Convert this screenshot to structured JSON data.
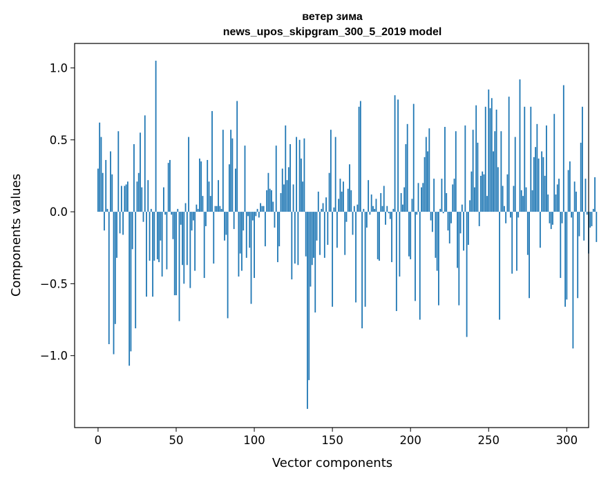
{
  "chart_data": {
    "type": "bar",
    "title_line1": "ветер зима",
    "title_line2": "news_upos_skipgram_300_5_2019 model",
    "xlabel": "Vector components",
    "ylabel": "Components values",
    "xlim": [
      -15,
      314
    ],
    "ylim": [
      -1.5,
      1.17
    ],
    "xticks": [
      0,
      50,
      100,
      150,
      200,
      250,
      300
    ],
    "yticks": [
      1.0,
      0.5,
      0.0,
      -0.5,
      -1.0
    ],
    "ytick_labels": [
      "1.0",
      "0.5",
      "0.0",
      "−0.5",
      "−1.0"
    ],
    "bar_color": "#1f77b4",
    "values": [
      0.3,
      0.62,
      0.52,
      0.27,
      -0.13,
      0.36,
      0.02,
      -0.92,
      0.42,
      0.26,
      -0.99,
      -0.78,
      -0.32,
      0.56,
      -0.15,
      0.18,
      -0.16,
      0.18,
      0.19,
      0.21,
      -1.07,
      -0.97,
      -0.26,
      0.47,
      -0.81,
      0.21,
      0.27,
      0.55,
      0.17,
      -0.07,
      0.67,
      -0.59,
      0.22,
      -0.34,
      0.02,
      -0.59,
      -0.34,
      1.05,
      -0.33,
      -0.35,
      -0.2,
      -0.45,
      0.17,
      -0.02,
      -0.4,
      0.34,
      0.36,
      -0.02,
      -0.19,
      -0.58,
      -0.58,
      0.02,
      -0.76,
      -0.09,
      -0.37,
      -0.5,
      0.06,
      -0.37,
      0.52,
      -0.53,
      -0.13,
      -0.06,
      -0.41,
      0.05,
      0.02,
      0.37,
      0.35,
      0.11,
      -0.46,
      -0.1,
      0.36,
      0.21,
      0.11,
      0.7,
      -0.36,
      0.04,
      0.04,
      0.22,
      0.04,
      0.02,
      0.57,
      -0.2,
      -0.16,
      -0.74,
      0.33,
      0.57,
      0.51,
      -0.12,
      0.3,
      0.77,
      -0.45,
      -0.29,
      -0.41,
      -0.13,
      0.46,
      -0.32,
      -0.03,
      -0.25,
      -0.64,
      -0.06,
      -0.46,
      -0.03,
      0.02,
      -0.04,
      0.06,
      0.04,
      0.04,
      -0.24,
      0.15,
      0.27,
      0.16,
      0.15,
      0.07,
      -0.11,
      0.46,
      -0.35,
      -0.24,
      0.13,
      0.3,
      0.19,
      0.6,
      0.22,
      0.31,
      0.47,
      -0.47,
      0.19,
      -0.36,
      0.52,
      -0.37,
      0.5,
      0.37,
      0.21,
      0.51,
      -0.31,
      -1.37,
      -1.17,
      -0.52,
      -0.37,
      -0.32,
      -0.7,
      -0.2,
      0.14,
      -0.3,
      0.02,
      0.06,
      -0.32,
      0.1,
      -0.23,
      0.27,
      0.57,
      -0.66,
      0.03,
      0.52,
      -0.25,
      0.09,
      0.23,
      0.14,
      0.21,
      -0.3,
      -0.07,
      0.16,
      0.33,
      0.15,
      -0.16,
      0.04,
      -0.63,
      0.05,
      0.73,
      0.77,
      -0.81,
      0.02,
      -0.66,
      -0.11,
      0.22,
      -0.02,
      0.12,
      0.04,
      0.02,
      0.09,
      -0.33,
      -0.34,
      0.13,
      0.04,
      0.18,
      -0.09,
      0.04,
      -0.01,
      -0.05,
      -0.35,
      0.02,
      0.81,
      -0.69,
      0.78,
      -0.45,
      0.13,
      0.05,
      0.17,
      0.47,
      0.61,
      -0.31,
      -0.33,
      0.09,
      0.75,
      -0.62,
      -0.02,
      0.2,
      -0.75,
      0.17,
      0.2,
      0.38,
      0.52,
      0.42,
      0.58,
      -0.06,
      -0.14,
      0.23,
      -0.32,
      -0.41,
      -0.65,
      0.02,
      0.23,
      -0.01,
      0.59,
      0.13,
      -0.13,
      -0.22,
      -0.08,
      0.19,
      0.23,
      0.56,
      -0.39,
      -0.65,
      -0.15,
      0.05,
      -0.27,
      0.6,
      -0.87,
      -0.23,
      0.08,
      0.28,
      0.57,
      0.17,
      0.74,
      0.48,
      -0.1,
      0.25,
      0.28,
      0.26,
      0.73,
      0.11,
      0.85,
      0.72,
      0.79,
      0.42,
      0.56,
      0.71,
      0.31,
      -0.75,
      0.56,
      0.18,
      0.04,
      -0.08,
      0.26,
      0.8,
      -0.04,
      -0.43,
      0.18,
      0.52,
      -0.41,
      -0.04,
      0.92,
      0.15,
      0.11,
      0.73,
      0.17,
      -0.3,
      -0.6,
      0.73,
      0.15,
      0.38,
      0.45,
      0.61,
      0.37,
      -0.25,
      0.42,
      0.38,
      0.25,
      0.6,
      0.12,
      -0.08,
      -0.12,
      -0.09,
      0.68,
      0.12,
      0.19,
      0.23,
      -0.46,
      -0.08,
      0.88,
      -0.66,
      -0.61,
      0.29,
      0.35,
      -0.04,
      -0.95,
      0.21,
      0.14,
      -0.6,
      -0.17,
      0.48,
      0.73,
      -0.2,
      0.23,
      -0.02,
      -0.29,
      -0.11,
      -0.1,
      0.02,
      0.24,
      -0.21
    ]
  }
}
